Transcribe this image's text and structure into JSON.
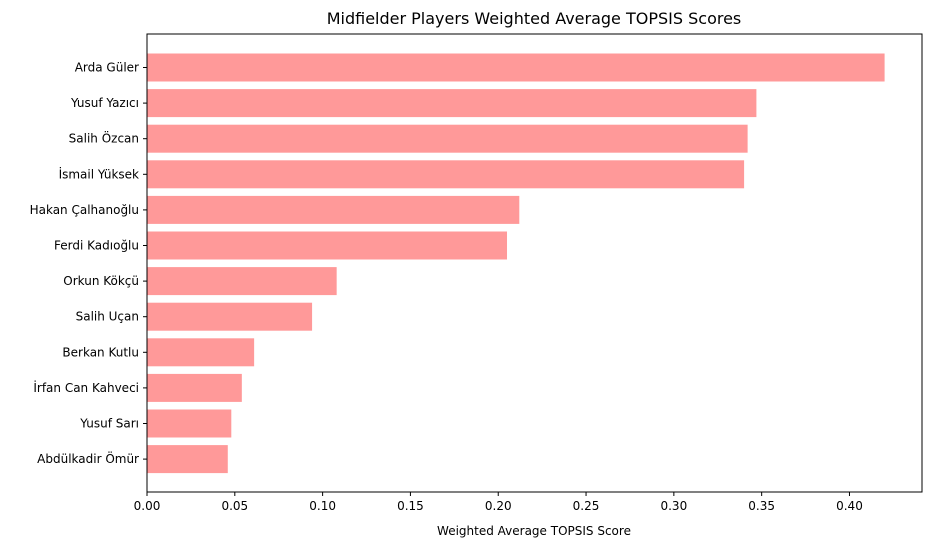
{
  "chart_data": {
    "type": "bar",
    "orientation": "horizontal",
    "title": "Midfielder Players Weighted Average TOPSIS Scores",
    "xlabel": "Weighted Average TOPSIS Score",
    "ylabel": "",
    "xlim": [
      0,
      0.4413
    ],
    "xticks": [
      "0.00",
      "0.05",
      "0.10",
      "0.15",
      "0.20",
      "0.25",
      "0.30",
      "0.35",
      "0.40"
    ],
    "grid": false,
    "bar_color": "#ff9999",
    "categories": [
      "Arda Güler",
      "Yusuf Yazıcı",
      "Salih Özcan",
      "İsmail Yüksek",
      "Hakan Çalhanoğlu",
      "Ferdi Kadıoğlu",
      "Orkun Kökçü",
      "Salih Uçan",
      "Berkan Kutlu",
      "İrfan Can Kahveci",
      "Yusuf Sarı",
      "Abdülkadir Ömür"
    ],
    "values": [
      0.42,
      0.347,
      0.342,
      0.34,
      0.212,
      0.205,
      0.108,
      0.094,
      0.061,
      0.054,
      0.048,
      0.046
    ]
  }
}
